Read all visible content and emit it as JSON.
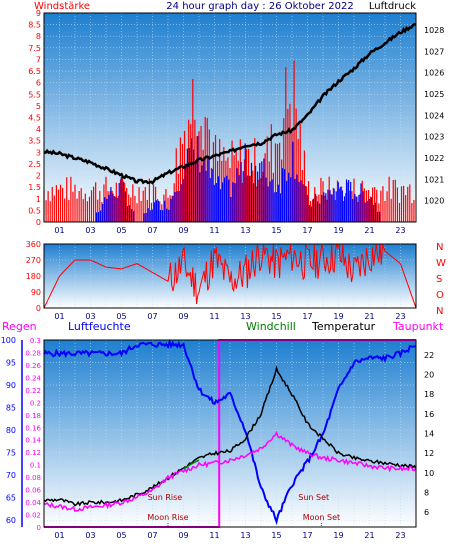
{
  "header": {
    "left_label": "Windstärke",
    "title": "24 hour graph day : 26 Oktober 2022",
    "right_label": "Luftdruck"
  },
  "colors": {
    "wind": "#ff0000",
    "gust": "#0000ff",
    "pressure": "#000000",
    "direction": "#ff0000",
    "humidity": "#0000ff",
    "temperature": "#000000",
    "dewpoint": "#ff00ff",
    "windchill": "#008000",
    "rain": "#ff00ff",
    "sky_top": "#1e7fd0",
    "sky_bottom": "#ffffff",
    "grid": "#9ad0f0"
  },
  "time_ticks": [
    "01",
    "03",
    "05",
    "07",
    "09",
    "11",
    "13",
    "15",
    "17",
    "19",
    "21",
    "23"
  ],
  "chart_data": [
    {
      "type": "bar",
      "title": "",
      "ylabel_left": "Windstärke",
      "ylabel_right": "Luftdruck",
      "xlim": [
        0,
        24
      ],
      "ylim_left": [
        0,
        9
      ],
      "ylim_right": [
        1019,
        1028.8
      ],
      "y_ticks_left": [
        "0",
        "0.5",
        "1",
        "1.5",
        "2",
        "2.5",
        "3",
        "3.5",
        "4",
        "4.5",
        "5",
        "5.5",
        "6",
        "6.5",
        "7",
        "7.5",
        "8",
        "8.5",
        "9"
      ],
      "y_ticks_right": [
        "1020",
        "1021",
        "1022",
        "1023",
        "1024",
        "1025",
        "1026",
        "1027",
        "1028"
      ],
      "series": [
        {
          "name": "Windstärke",
          "axis": "left",
          "x": [
            0,
            1,
            2,
            3,
            4,
            5,
            6,
            7,
            8,
            9,
            10,
            11,
            12,
            13,
            14,
            15,
            16,
            17,
            18,
            19,
            20,
            21,
            22,
            23,
            24
          ],
          "values": [
            2,
            2,
            2,
            2,
            2,
            2,
            2,
            2,
            1.5,
            5.5,
            8.7,
            4,
            3.5,
            4,
            3.5,
            5,
            8.5,
            2,
            2,
            2,
            2,
            2,
            2,
            2,
            2
          ]
        },
        {
          "name": "Böen",
          "axis": "left",
          "x": [
            0,
            1,
            2,
            3,
            4,
            5,
            6,
            7,
            8,
            9,
            10,
            11,
            12,
            13,
            14,
            15,
            16,
            17,
            18,
            19,
            20,
            21,
            22,
            23,
            24
          ],
          "values": [
            0,
            0,
            0,
            0,
            1.5,
            2,
            0,
            1,
            1,
            3.5,
            4,
            2,
            2,
            3.5,
            3,
            2,
            4,
            1,
            1.5,
            2,
            1.8,
            1.5,
            0,
            0,
            0
          ]
        },
        {
          "name": "Luftdruck",
          "axis": "right",
          "x": [
            0,
            1,
            2,
            3,
            4,
            5,
            6,
            7,
            8,
            9,
            10,
            11,
            12,
            13,
            14,
            15,
            16,
            17,
            18,
            19,
            20,
            21,
            22,
            23,
            24
          ],
          "values": [
            1022.3,
            1022.2,
            1022,
            1021.8,
            1021.5,
            1021.2,
            1020.9,
            1020.9,
            1021.3,
            1021.6,
            1021.9,
            1022.1,
            1022.3,
            1022.6,
            1022.7,
            1023.1,
            1023.3,
            1024,
            1024.9,
            1025.6,
            1026.2,
            1026.9,
            1027.4,
            1027.9,
            1028.3
          ]
        }
      ]
    },
    {
      "type": "line",
      "title": "",
      "xlim": [
        0,
        24
      ],
      "ylim": [
        0,
        360
      ],
      "y_ticks": [
        "0",
        "90",
        "180",
        "270",
        "360"
      ],
      "compass_labels": [
        "N",
        "W",
        "S",
        "O",
        "N"
      ],
      "series": [
        {
          "name": "Windrichtung",
          "x": [
            0,
            1,
            2,
            3,
            4,
            5,
            6,
            7,
            8,
            9,
            10,
            11,
            12,
            13,
            14,
            15,
            16,
            17,
            18,
            19,
            20,
            21,
            22,
            23,
            24
          ],
          "values": [
            0,
            180,
            270,
            270,
            230,
            220,
            250,
            200,
            150,
            250,
            100,
            280,
            150,
            200,
            320,
            250,
            300,
            250,
            280,
            300,
            200,
            300,
            320,
            250,
            0
          ]
        }
      ]
    },
    {
      "type": "line",
      "title": "",
      "legend": [
        "Regen",
        "Luftfeuchte",
        "Windchill",
        "Temperatur",
        "Taupunkt"
      ],
      "xlim": [
        0,
        24
      ],
      "ylim_humidity": [
        58.5,
        100
      ],
      "ylim_rain": [
        0,
        0.3
      ],
      "ylim_temperature": [
        4.5,
        23.5
      ],
      "y_ticks_humidity": [
        "60",
        "65",
        "70",
        "75",
        "80",
        "85",
        "90",
        "95",
        "100"
      ],
      "y_ticks_rain": [
        "0",
        "0.02",
        "0.04",
        "0.06",
        "0.08",
        "0.1",
        "0.12",
        "0.14",
        "0.16",
        "0.18",
        "0.2",
        "0.22",
        "0.24",
        "0.26",
        "0.28",
        "0.3"
      ],
      "y_ticks_temperature": [
        "6",
        "8",
        "10",
        "12",
        "14",
        "16",
        "18",
        "20",
        "22"
      ],
      "annotations": [
        {
          "text": "Sun Rise",
          "x": 7.8
        },
        {
          "text": "Moon Rise",
          "x": 8.0
        },
        {
          "text": "Sun Set",
          "x": 17.4
        },
        {
          "text": "Moon Set",
          "x": 17.9
        }
      ],
      "series": [
        {
          "name": "Luftfeuchte",
          "axis": "humidity",
          "x": [
            0,
            1,
            2,
            3,
            4,
            5,
            6,
            7,
            8,
            9,
            10,
            11,
            12,
            13,
            14,
            15,
            16,
            17,
            18,
            19,
            20,
            21,
            22,
            23,
            24
          ],
          "values": [
            97,
            97,
            97,
            97,
            97,
            97,
            99,
            99,
            99,
            99,
            89,
            86,
            88,
            80,
            67,
            60,
            68,
            73,
            79,
            89,
            95,
            96,
            96,
            97,
            99
          ]
        },
        {
          "name": "Temperatur",
          "axis": "temperature",
          "x": [
            0,
            1,
            2,
            3,
            4,
            5,
            6,
            7,
            8,
            9,
            10,
            11,
            12,
            13,
            14,
            15,
            16,
            17,
            18,
            19,
            20,
            21,
            22,
            23,
            24
          ],
          "values": [
            7.2,
            7.3,
            6.8,
            7,
            7,
            7.2,
            7.8,
            8.5,
            9.5,
            10.5,
            11.5,
            12,
            12.2,
            13.5,
            16,
            20.5,
            18,
            15,
            13.5,
            12,
            11.5,
            11.2,
            11,
            10.8,
            10.6
          ]
        },
        {
          "name": "Taupunkt",
          "axis": "temperature",
          "x": [
            0,
            1,
            2,
            3,
            4,
            5,
            6,
            7,
            8,
            9,
            10,
            11,
            12,
            13,
            14,
            15,
            16,
            17,
            18,
            19,
            20,
            21,
            22,
            23,
            24
          ],
          "values": [
            6.8,
            6.6,
            6.3,
            6.5,
            6.7,
            7,
            7.5,
            8.2,
            9.5,
            10.2,
            10.8,
            11,
            11.3,
            11.8,
            12.5,
            14,
            12.8,
            12,
            11.5,
            11.3,
            11,
            10.7,
            10.5,
            10.4,
            10.4
          ]
        },
        {
          "name": "Windchill",
          "axis": "temperature",
          "x": [
            9,
            9.5,
            10
          ],
          "values": [
            10.4,
            10.9,
            11.3
          ]
        },
        {
          "name": "Regen",
          "axis": "rain",
          "x": [
            0,
            11.3,
            11.3,
            24
          ],
          "values": [
            0,
            0,
            0.3,
            0.3
          ]
        }
      ]
    }
  ]
}
